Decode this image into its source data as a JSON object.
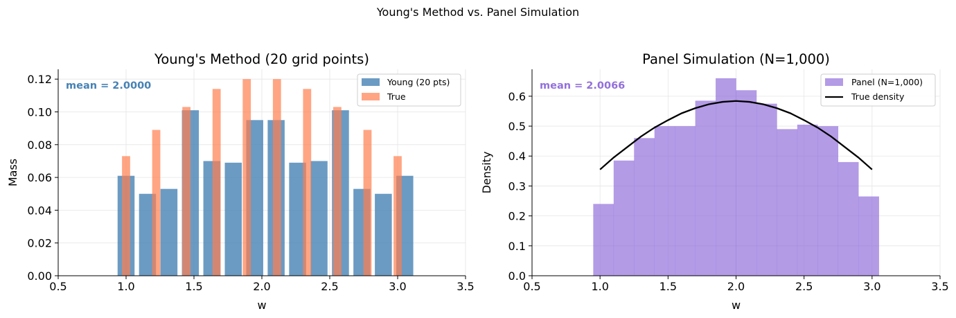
{
  "suptitle": "Young's Method vs. Panel Simulation",
  "colors": {
    "young": "#4682b4",
    "true_bar": "#ff7f50",
    "panel": "#9370db",
    "true_line": "#000000",
    "grid": "#e5e5e5"
  },
  "chart_data": [
    {
      "type": "bar",
      "title": "Young's Method (20 grid points)",
      "xlabel": "w",
      "ylabel": "Mass",
      "xlim": [
        0.5,
        3.5
      ],
      "ylim": [
        0,
        0.126
      ],
      "xticks": [
        "0.5",
        "1.0",
        "1.5",
        "2.0",
        "2.5",
        "3.0",
        "3.5"
      ],
      "yticks": [
        "0.00",
        "0.02",
        "0.04",
        "0.06",
        "0.08",
        "0.10",
        "0.12"
      ],
      "grid": true,
      "legend_position": "top-right",
      "annotation": "mean = 2.0000",
      "series": [
        {
          "name": "Young (20 pts)",
          "x": [
            1.0,
            1.1579,
            1.3158,
            1.4737,
            1.6316,
            1.7895,
            1.9474,
            2.1053,
            2.2632,
            2.4211,
            2.5789,
            2.7368,
            2.8947,
            3.0526
          ],
          "values": [
            0.061,
            0.05,
            0.053,
            0.101,
            0.07,
            0.069,
            0.095,
            0.095,
            0.069,
            0.07,
            0.101,
            0.053,
            0.05,
            0.061
          ]
        },
        {
          "name": "True",
          "x": [
            1.0,
            1.2222,
            1.4444,
            1.6667,
            1.8889,
            2.1111,
            2.3333,
            2.5556,
            2.7778,
            3.0
          ],
          "values": [
            0.073,
            0.089,
            0.103,
            0.114,
            0.12,
            0.12,
            0.114,
            0.103,
            0.089,
            0.073
          ]
        }
      ]
    },
    {
      "type": "area",
      "title": "Panel Simulation (N=1,000)",
      "xlabel": "w",
      "ylabel": "Density",
      "xlim": [
        0.5,
        3.5
      ],
      "ylim": [
        0,
        0.69
      ],
      "xticks": [
        "0.5",
        "1.0",
        "1.5",
        "2.0",
        "2.5",
        "3.0",
        "3.5"
      ],
      "yticks": [
        "0.0",
        "0.1",
        "0.2",
        "0.3",
        "0.4",
        "0.5",
        "0.6"
      ],
      "grid": true,
      "legend_position": "top-right",
      "annotation": "mean = 2.0066",
      "series": [
        {
          "name": "Panel (N=1,000)",
          "bin_edges": [
            0.95,
            1.1,
            1.25,
            1.4,
            1.55,
            1.7,
            1.85,
            2.0,
            2.15,
            2.3,
            2.45,
            2.6,
            2.75,
            2.9,
            3.05
          ],
          "values": [
            0.24,
            0.385,
            0.46,
            0.5,
            0.5,
            0.585,
            0.66,
            0.62,
            0.575,
            0.49,
            0.505,
            0.5,
            0.38,
            0.265
          ]
        },
        {
          "name": "True density",
          "x": [
            1.0,
            1.1,
            1.2,
            1.3,
            1.4,
            1.5,
            1.6,
            1.7,
            1.8,
            1.9,
            2.0,
            2.1,
            2.2,
            2.3,
            2.4,
            2.5,
            2.6,
            2.7,
            2.8,
            2.9,
            3.0
          ],
          "values": [
            0.355,
            0.395,
            0.43,
            0.465,
            0.495,
            0.52,
            0.543,
            0.56,
            0.573,
            0.581,
            0.584,
            0.581,
            0.573,
            0.56,
            0.543,
            0.52,
            0.495,
            0.465,
            0.43,
            0.395,
            0.355
          ]
        }
      ]
    }
  ]
}
